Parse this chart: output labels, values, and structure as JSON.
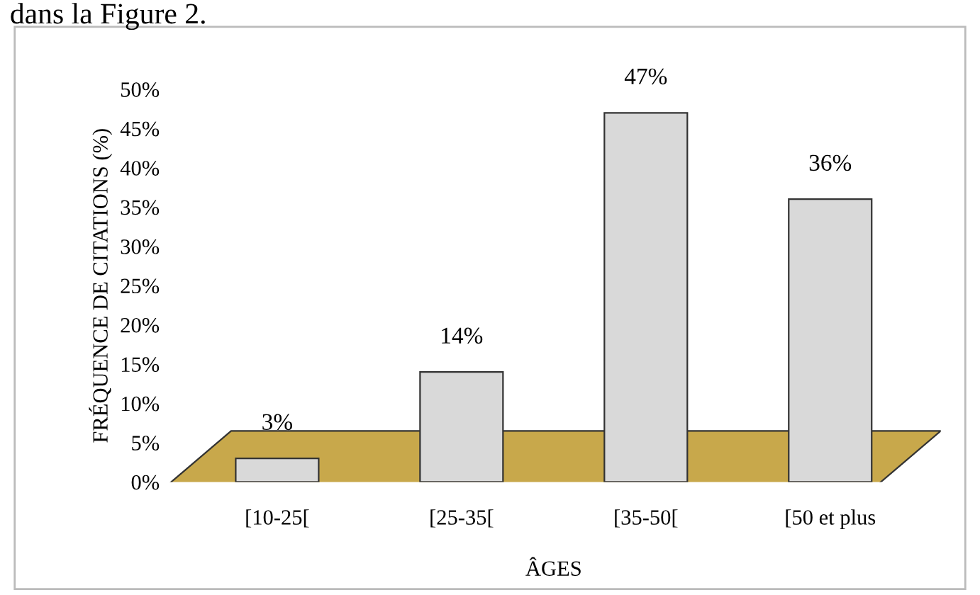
{
  "chart_data": {
    "type": "bar",
    "xlabel": "ÂGES",
    "ylabel": "FRÉQUENCE DE CITATIONS (%)",
    "annotations": [
      "dans la Figure 2."
    ],
    "categories": [
      "[10-25[",
      "[25-35[",
      "[35-50[",
      "[50 et plus"
    ],
    "values": [
      3,
      14,
      47,
      36
    ],
    "value_labels": [
      "3%",
      "14%",
      "47%",
      "36%"
    ],
    "color": "#d9d9d9",
    "ylim": [
      0,
      50
    ],
    "yticks": [
      {
        "value": 0,
        "label": "0%"
      },
      {
        "value": 5,
        "label": "5%"
      },
      {
        "value": 10,
        "label": "10%"
      },
      {
        "value": 15,
        "label": "15%"
      },
      {
        "value": 20,
        "label": "20%"
      },
      {
        "value": 25,
        "label": "25%"
      },
      {
        "value": 30,
        "label": "30%"
      },
      {
        "value": 35,
        "label": "35%"
      },
      {
        "value": 40,
        "label": "40%"
      },
      {
        "value": 45,
        "label": "45%"
      },
      {
        "value": 50,
        "label": "50%"
      }
    ],
    "grid": false,
    "legend": false
  }
}
